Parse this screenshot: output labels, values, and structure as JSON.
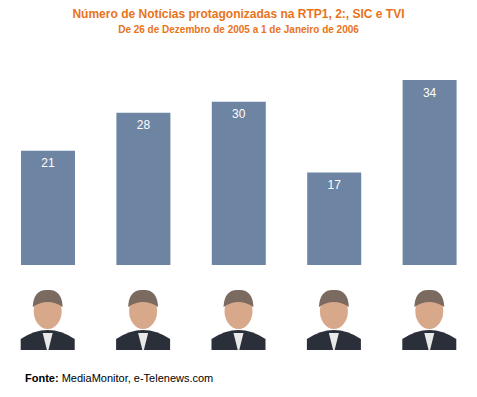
{
  "chart_data": {
    "type": "bar",
    "title": "Número de Notícias protagonizadas na RTP1, 2:, SIC e TVI",
    "subtitle": "De 26 de Dezembro de 2005 a 1 de Janeiro de 2006",
    "categories": [
      null,
      null,
      null,
      null,
      null
    ],
    "values": [
      21,
      28,
      30,
      17,
      34
    ],
    "color": "#6d85a2",
    "ylim": [
      0,
      34
    ],
    "data_labels": true,
    "tick_labels": false,
    "grid": false,
    "source": "Fonte: MediaMonitor, e-Telenews.com"
  }
}
